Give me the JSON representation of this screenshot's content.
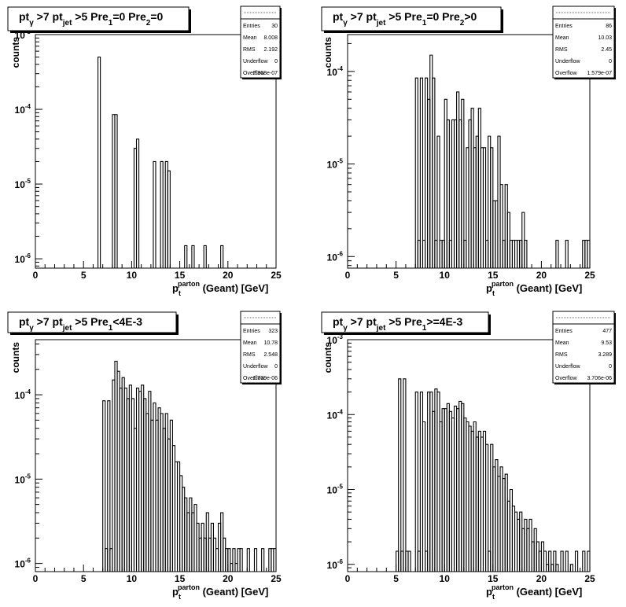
{
  "chart_data": [
    {
      "type": "histogram",
      "title": "pt_γ>7 pt_jet>5 Pre_1=0 Pre_2=0",
      "title_parts": [
        "pt",
        "γ",
        " >7  pt",
        "jet",
        " >5 Pre",
        "1",
        "=0 Pre",
        "2",
        "=0"
      ],
      "ylabel": "counts",
      "xlabel_parts": [
        "p",
        "t",
        "parton",
        " (Geant) [GeV]"
      ],
      "xlim": [
        0,
        25
      ],
      "x_ticks": [
        "0",
        "5",
        "10",
        "15",
        "20",
        "25"
      ],
      "y_scale": "log",
      "ylim": [
        7.5e-07,
        0.001
      ],
      "y_ticks": [
        {
          "mantissa": "10",
          "exp": "-6",
          "value": 1e-06
        },
        {
          "mantissa": "10",
          "exp": "-5",
          "value": 1e-05
        },
        {
          "mantissa": "10",
          "exp": "-4",
          "value": 0.0001
        },
        {
          "mantissa": "10",
          "exp": "-3",
          "value": 0.001
        }
      ],
      "stats": [
        {
          "label": "Entries",
          "value": "30"
        },
        {
          "label": "Mean",
          "value": "8.008"
        },
        {
          "label": "RMS",
          "value": "2.192"
        },
        {
          "label": "Underflow",
          "value": "0"
        },
        {
          "label": "Overflow",
          "value": "2.368e-07"
        }
      ],
      "bins": [
        [
          6.5,
          0.0005
        ],
        [
          8.0,
          8.5e-05
        ],
        [
          8.25,
          8.5e-05
        ],
        [
          10.25,
          3e-05
        ],
        [
          10.5,
          4e-05
        ],
        [
          12.25,
          2e-05
        ],
        [
          13.0,
          2e-05
        ],
        [
          13.5,
          2e-05
        ],
        [
          13.75,
          1.5e-05
        ],
        [
          15.5,
          1.5e-06
        ],
        [
          16.25,
          1.5e-06
        ],
        [
          17.5,
          1.5e-06
        ],
        [
          19.25,
          1.5e-06
        ]
      ]
    },
    {
      "type": "histogram",
      "title": "pt_γ>7 pt_jet>5 Pre_1=0 Pre_2>0",
      "title_parts": [
        "pt",
        "γ",
        " >7  pt",
        "jet",
        " >5 Pre",
        "1",
        "=0 Pre",
        "2",
        ">0"
      ],
      "ylabel": "counts",
      "xlabel_parts": [
        "p",
        "t",
        "parton",
        " (Geant) [GeV]"
      ],
      "xlim": [
        0,
        25
      ],
      "x_ticks": [
        "0",
        "5",
        "10",
        "15",
        "20",
        "25"
      ],
      "y_scale": "log",
      "ylim": [
        7.5e-07,
        0.00025
      ],
      "y_ticks": [
        {
          "mantissa": "10",
          "exp": "-6",
          "value": 1e-06
        },
        {
          "mantissa": "10",
          "exp": "-5",
          "value": 1e-05
        },
        {
          "mantissa": "10",
          "exp": "-4",
          "value": 0.0001
        }
      ],
      "stats": [
        {
          "label": "Entries",
          "value": "86"
        },
        {
          "label": "Mean",
          "value": "10.03"
        },
        {
          "label": "RMS",
          "value": "2.45"
        },
        {
          "label": "Underflow",
          "value": "0"
        },
        {
          "label": "Overflow",
          "value": "1.579e-07"
        }
      ],
      "bins": [
        [
          7.0,
          8.5e-05
        ],
        [
          7.25,
          1.5e-06
        ],
        [
          7.5,
          8.5e-05
        ],
        [
          7.75,
          1.5e-06
        ],
        [
          8.0,
          8.5e-05
        ],
        [
          8.25,
          5e-05
        ],
        [
          8.5,
          0.00015
        ],
        [
          8.75,
          8.5e-05
        ],
        [
          9.0,
          1.5e-06
        ],
        [
          9.25,
          2e-05
        ],
        [
          9.5,
          1.5e-06
        ],
        [
          9.75,
          1.5e-06
        ],
        [
          10.0,
          5e-05
        ],
        [
          10.25,
          3e-05
        ],
        [
          10.5,
          1.5e-06
        ],
        [
          10.75,
          3e-05
        ],
        [
          11.0,
          3e-05
        ],
        [
          11.25,
          6e-05
        ],
        [
          11.5,
          3e-05
        ],
        [
          11.75,
          5e-05
        ],
        [
          12.0,
          1.5e-06
        ],
        [
          12.25,
          1.5e-05
        ],
        [
          12.5,
          3e-05
        ],
        [
          12.75,
          4e-05
        ],
        [
          13.0,
          1.5e-05
        ],
        [
          13.25,
          2e-05
        ],
        [
          13.5,
          4e-05
        ],
        [
          13.75,
          1.5e-05
        ],
        [
          14.0,
          1.5e-05
        ],
        [
          14.25,
          1.5e-06
        ],
        [
          14.5,
          2e-05
        ],
        [
          14.75,
          1.5e-05
        ],
        [
          15.0,
          4e-06
        ],
        [
          15.25,
          4e-06
        ],
        [
          15.5,
          2e-05
        ],
        [
          15.75,
          6e-06
        ],
        [
          16.0,
          1.5e-06
        ],
        [
          16.25,
          6e-06
        ],
        [
          16.5,
          3e-06
        ],
        [
          16.75,
          1.5e-06
        ],
        [
          17.0,
          1.5e-06
        ],
        [
          17.25,
          1.5e-06
        ],
        [
          17.5,
          1.5e-06
        ],
        [
          17.75,
          1.5e-06
        ],
        [
          18.0,
          3e-06
        ],
        [
          18.25,
          1.5e-06
        ],
        [
          21.5,
          1.5e-06
        ],
        [
          22.5,
          1.5e-06
        ],
        [
          24.25,
          1.5e-06
        ],
        [
          24.5,
          1.5e-06
        ],
        [
          24.75,
          1.5e-06
        ]
      ]
    },
    {
      "type": "histogram",
      "title": "pt_γ>7 pt_jet>5 Pre_1<4E-3",
      "title_parts": [
        "pt",
        "γ",
        " >7  pt",
        "jet",
        " >5 Pre",
        "1",
        "<4E-3"
      ],
      "ylabel": "counts",
      "xlabel_parts": [
        "p",
        "t",
        "parton",
        " (Geant) [GeV]"
      ],
      "xlim": [
        0,
        25
      ],
      "x_ticks": [
        "0",
        "5",
        "10",
        "15",
        "20",
        "25"
      ],
      "y_scale": "log",
      "ylim": [
        8e-07,
        0.00045
      ],
      "y_ticks": [
        {
          "mantissa": "10",
          "exp": "-6",
          "value": 1e-06
        },
        {
          "mantissa": "10",
          "exp": "-5",
          "value": 1e-05
        },
        {
          "mantissa": "10",
          "exp": "-4",
          "value": 0.0001
        }
      ],
      "stats": [
        {
          "label": "Entries",
          "value": "323"
        },
        {
          "label": "Mean",
          "value": "10.78"
        },
        {
          "label": "RMS",
          "value": "2.548"
        },
        {
          "label": "Underflow",
          "value": "0"
        },
        {
          "label": "Overflow",
          "value": "1.739e-06"
        }
      ],
      "bins": [
        [
          7.0,
          8.5e-05
        ],
        [
          7.25,
          1.5e-06
        ],
        [
          7.5,
          8.5e-05
        ],
        [
          7.75,
          1.5e-06
        ],
        [
          8.0,
          0.00015
        ],
        [
          8.25,
          0.00025
        ],
        [
          8.5,
          0.00019
        ],
        [
          8.75,
          0.00012
        ],
        [
          9.0,
          0.00016
        ],
        [
          9.25,
          0.00012
        ],
        [
          9.5,
          9e-05
        ],
        [
          9.75,
          0.00013
        ],
        [
          10.0,
          9e-05
        ],
        [
          10.25,
          4e-05
        ],
        [
          10.5,
          0.00012
        ],
        [
          10.75,
          0.00011
        ],
        [
          11.0,
          0.00013
        ],
        [
          11.25,
          9e-05
        ],
        [
          11.5,
          6e-05
        ],
        [
          11.75,
          0.00011
        ],
        [
          12.0,
          5e-05
        ],
        [
          12.25,
          8e-05
        ],
        [
          12.5,
          5e-05
        ],
        [
          12.75,
          7e-05
        ],
        [
          13.0,
          6e-05
        ],
        [
          13.25,
          4e-05
        ],
        [
          13.5,
          6e-05
        ],
        [
          13.75,
          3e-05
        ],
        [
          14.0,
          5e-05
        ],
        [
          14.25,
          2.5e-05
        ],
        [
          14.5,
          1.6e-05
        ],
        [
          14.75,
          1.6e-05
        ],
        [
          15.0,
          1.1e-05
        ],
        [
          15.25,
          8e-06
        ],
        [
          15.5,
          6e-06
        ],
        [
          15.75,
          4e-06
        ],
        [
          16.0,
          6e-06
        ],
        [
          16.25,
          4e-06
        ],
        [
          16.5,
          5e-06
        ],
        [
          16.75,
          3e-06
        ],
        [
          17.0,
          2e-06
        ],
        [
          17.25,
          3e-06
        ],
        [
          17.5,
          2e-06
        ],
        [
          17.75,
          4e-06
        ],
        [
          18.0,
          2e-06
        ],
        [
          18.25,
          3e-06
        ],
        [
          18.5,
          2e-06
        ],
        [
          18.75,
          1.5e-06
        ],
        [
          19.0,
          3e-06
        ],
        [
          19.25,
          4e-06
        ],
        [
          19.5,
          2e-06
        ],
        [
          19.75,
          1.5e-06
        ],
        [
          20.0,
          1.5e-06
        ],
        [
          20.25,
          1e-06
        ],
        [
          20.5,
          1.5e-06
        ],
        [
          20.75,
          1e-06
        ],
        [
          21.0,
          1.5e-06
        ],
        [
          21.25,
          1.5e-06
        ],
        [
          22.0,
          1.5e-06
        ],
        [
          22.75,
          1.5e-06
        ],
        [
          23.5,
          1.5e-06
        ],
        [
          24.25,
          1.5e-06
        ],
        [
          24.5,
          1.5e-06
        ],
        [
          24.75,
          1.5e-06
        ]
      ]
    },
    {
      "type": "histogram",
      "title": "pt_γ>7 pt_jet>5 Pre_1>=4E-3",
      "title_parts": [
        "pt",
        "γ",
        " >7  pt",
        "jet",
        " >5 Pre",
        "1",
        ">=4E-3"
      ],
      "ylabel": "counts",
      "xlabel_parts": [
        "p",
        "t",
        "parton",
        " (Geant) [GeV]"
      ],
      "xlim": [
        0,
        25
      ],
      "x_ticks": [
        "0",
        "5",
        "10",
        "15",
        "20",
        "25"
      ],
      "y_scale": "log",
      "ylim": [
        8e-07,
        0.001
      ],
      "y_ticks": [
        {
          "mantissa": "10",
          "exp": "-6",
          "value": 1e-06
        },
        {
          "mantissa": "10",
          "exp": "-5",
          "value": 1e-05
        },
        {
          "mantissa": "10",
          "exp": "-4",
          "value": 0.0001
        },
        {
          "mantissa": "10",
          "exp": "-3",
          "value": 0.001
        }
      ],
      "stats": [
        {
          "label": "Entries",
          "value": "477"
        },
        {
          "label": "Mean",
          "value": "9.53"
        },
        {
          "label": "RMS",
          "value": "3.289"
        },
        {
          "label": "Underflow",
          "value": "0"
        },
        {
          "label": "Overflow",
          "value": "3.706e-06"
        }
      ],
      "bins": [
        [
          5.0,
          1.5e-06
        ],
        [
          5.25,
          0.0003
        ],
        [
          5.5,
          1.5e-06
        ],
        [
          5.75,
          0.0003
        ],
        [
          6.0,
          1.5e-06
        ],
        [
          6.25,
          1.5e-06
        ],
        [
          7.0,
          0.0002
        ],
        [
          7.25,
          1.5e-06
        ],
        [
          7.5,
          0.0002
        ],
        [
          7.75,
          8e-05
        ],
        [
          8.0,
          1.5e-06
        ],
        [
          8.25,
          0.0002
        ],
        [
          8.5,
          0.0002
        ],
        [
          8.75,
          0.00011
        ],
        [
          9.0,
          0.00022
        ],
        [
          9.25,
          0.0002
        ],
        [
          9.5,
          8e-05
        ],
        [
          9.75,
          0.00012
        ],
        [
          10.0,
          0.00012
        ],
        [
          10.25,
          0.00014
        ],
        [
          10.5,
          0.00011
        ],
        [
          10.75,
          9e-05
        ],
        [
          11.0,
          0.00013
        ],
        [
          11.25,
          0.00012
        ],
        [
          11.5,
          0.00015
        ],
        [
          11.75,
          0.00014
        ],
        [
          12.0,
          9e-05
        ],
        [
          12.25,
          8e-05
        ],
        [
          12.5,
          7e-05
        ],
        [
          12.75,
          6e-05
        ],
        [
          13.0,
          8e-05
        ],
        [
          13.25,
          5e-05
        ],
        [
          13.5,
          6e-05
        ],
        [
          13.75,
          5e-05
        ],
        [
          14.0,
          6e-05
        ],
        [
          14.25,
          4e-05
        ],
        [
          14.5,
          1.5e-06
        ],
        [
          14.75,
          4e-05
        ],
        [
          15.0,
          2e-05
        ],
        [
          15.25,
          2.5e-05
        ],
        [
          15.5,
          1.5e-05
        ],
        [
          15.75,
          2e-05
        ],
        [
          16.0,
          1.4e-05
        ],
        [
          16.25,
          1.6e-05
        ],
        [
          16.5,
          7e-06
        ],
        [
          16.75,
          1e-05
        ],
        [
          17.0,
          6e-06
        ],
        [
          17.25,
          5e-06
        ],
        [
          17.5,
          4e-06
        ],
        [
          17.75,
          5e-06
        ],
        [
          18.0,
          3e-06
        ],
        [
          18.25,
          4e-06
        ],
        [
          18.5,
          3e-06
        ],
        [
          18.75,
          4e-06
        ],
        [
          19.0,
          2e-06
        ],
        [
          19.25,
          3e-06
        ],
        [
          19.5,
          2e-06
        ],
        [
          19.75,
          1.5e-06
        ],
        [
          20.0,
          2e-06
        ],
        [
          20.25,
          1.5e-06
        ],
        [
          20.5,
          1e-06
        ],
        [
          20.75,
          1.5e-06
        ],
        [
          21.0,
          1e-06
        ],
        [
          21.25,
          1.5e-06
        ],
        [
          21.5,
          1e-06
        ],
        [
          22.0,
          1.5e-06
        ],
        [
          22.5,
          1.5e-06
        ],
        [
          23.0,
          1e-06
        ],
        [
          23.5,
          1.5e-06
        ],
        [
          24.25,
          1.5e-06
        ],
        [
          24.75,
          1.5e-06
        ]
      ]
    }
  ]
}
